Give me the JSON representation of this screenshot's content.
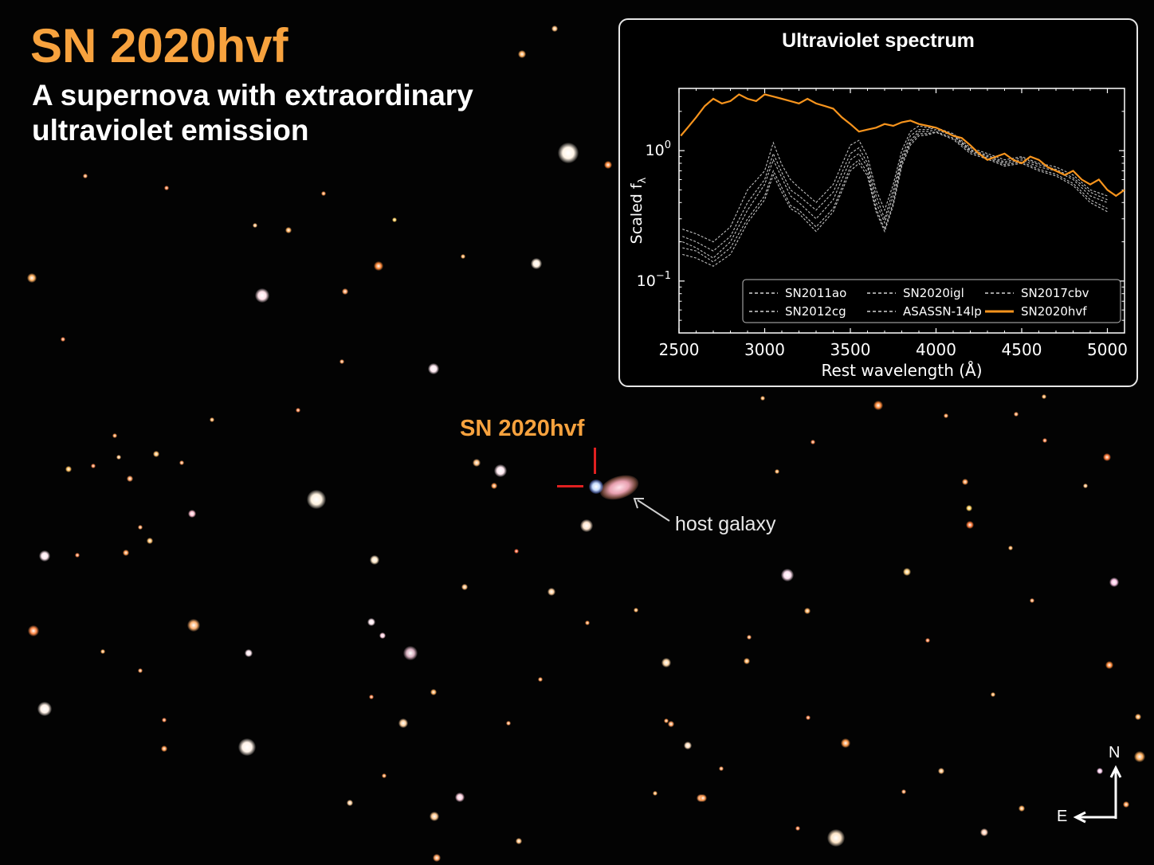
{
  "title": "SN 2020hvf",
  "subtitle": "A supernova with extraordinary ultraviolet emission",
  "annotations": {
    "sn_label": "SN 2020hvf",
    "host_label": "host galaxy"
  },
  "compass": {
    "north": "N",
    "east": "E"
  },
  "colors": {
    "accent": "#f7a23e",
    "marker": "#e02020",
    "comparison": "#d8d8d8",
    "sn2020hvf": "#f7941d"
  },
  "chart_data": {
    "type": "line",
    "title": "Ultraviolet spectrum",
    "xlabel": "Rest wavelength (Å)",
    "ylabel": "Scaled f",
    "ylabel_subscript": "λ",
    "xlim": [
      2500,
      5100
    ],
    "ylim": [
      0.04,
      3.0
    ],
    "yscale": "log",
    "xticks": [
      "2500",
      "3000",
      "3500",
      "4000",
      "4500",
      "5000"
    ],
    "yticks": [
      {
        "value": 1.0,
        "base": "10",
        "exp": "0"
      },
      {
        "value": 0.1,
        "base": "10",
        "exp": "−1"
      }
    ],
    "legend": "bottom-right",
    "series": [
      {
        "name": "SN2011ao",
        "style": "dashed",
        "color": "#ffffff",
        "x": [
          2520,
          2600,
          2700,
          2800,
          2900,
          3000,
          3050,
          3100,
          3150,
          3200,
          3300,
          3400,
          3500,
          3550,
          3600,
          3650,
          3700,
          3750,
          3800,
          3850,
          3900,
          3950,
          4000,
          4100,
          4200,
          4300,
          4400,
          4500,
          4600,
          4700,
          4800,
          4900,
          5000
        ],
        "y": [
          0.25,
          0.23,
          0.2,
          0.26,
          0.5,
          0.7,
          1.15,
          0.78,
          0.6,
          0.52,
          0.4,
          0.55,
          1.1,
          1.2,
          0.9,
          0.5,
          0.35,
          0.55,
          1.0,
          1.4,
          1.55,
          1.5,
          1.5,
          1.35,
          1.05,
          0.95,
          0.85,
          0.9,
          0.8,
          0.75,
          0.65,
          0.5,
          0.45
        ]
      },
      {
        "name": "SN2012cg",
        "style": "dashed",
        "color": "#ffffff",
        "x": [
          2520,
          2600,
          2700,
          2800,
          2900,
          3000,
          3050,
          3100,
          3150,
          3200,
          3300,
          3400,
          3500,
          3550,
          3600,
          3650,
          3700,
          3750,
          3800,
          3850,
          3900,
          3950,
          4000,
          4100,
          4200,
          4300,
          4400,
          4500,
          4600,
          4700,
          4800,
          4900,
          5000
        ],
        "y": [
          0.2,
          0.18,
          0.15,
          0.2,
          0.35,
          0.55,
          0.85,
          0.62,
          0.45,
          0.4,
          0.3,
          0.42,
          0.85,
          0.95,
          0.75,
          0.4,
          0.28,
          0.45,
          0.85,
          1.2,
          1.4,
          1.4,
          1.45,
          1.3,
          1.0,
          0.9,
          0.8,
          0.85,
          0.75,
          0.7,
          0.6,
          0.45,
          0.4
        ]
      },
      {
        "name": "SN2020igl",
        "style": "dashed",
        "color": "#ffffff",
        "x": [
          2520,
          2600,
          2700,
          2800,
          2900,
          3000,
          3050,
          3100,
          3150,
          3200,
          3300,
          3400,
          3500,
          3550,
          3600,
          3650,
          3700,
          3750,
          3800,
          3850,
          3900,
          3950,
          4000,
          4100,
          4200,
          4300,
          4400,
          4500,
          4600,
          4700,
          4800,
          4900,
          5000
        ],
        "y": [
          0.22,
          0.2,
          0.17,
          0.22,
          0.4,
          0.6,
          0.95,
          0.68,
          0.5,
          0.45,
          0.35,
          0.48,
          0.95,
          1.05,
          0.8,
          0.45,
          0.3,
          0.5,
          0.9,
          1.3,
          1.45,
          1.45,
          1.5,
          1.32,
          1.02,
          0.92,
          0.82,
          0.88,
          0.78,
          0.72,
          0.62,
          0.48,
          0.42
        ]
      },
      {
        "name": "ASASSN-14lp",
        "style": "dashed",
        "color": "#ffffff",
        "x": [
          2520,
          2600,
          2700,
          2800,
          2900,
          3000,
          3050,
          3100,
          3150,
          3200,
          3300,
          3400,
          3500,
          3550,
          3600,
          3650,
          3700,
          3750,
          3800,
          3850,
          3900,
          3950,
          4000,
          4100,
          4200,
          4300,
          4400,
          4500,
          4600,
          4700,
          4800,
          4900,
          5000
        ],
        "y": [
          0.18,
          0.17,
          0.14,
          0.18,
          0.3,
          0.45,
          0.7,
          0.52,
          0.38,
          0.35,
          0.26,
          0.36,
          0.75,
          0.85,
          0.68,
          0.36,
          0.25,
          0.4,
          0.8,
          1.15,
          1.35,
          1.35,
          1.4,
          1.25,
          0.98,
          0.88,
          0.78,
          0.82,
          0.72,
          0.66,
          0.56,
          0.42,
          0.36
        ]
      },
      {
        "name": "SN2017cbv",
        "style": "dashed",
        "color": "#ffffff",
        "x": [
          2520,
          2600,
          2700,
          2800,
          2900,
          3000,
          3050,
          3100,
          3150,
          3200,
          3300,
          3400,
          3500,
          3550,
          3600,
          3650,
          3700,
          3750,
          3800,
          3850,
          3900,
          3950,
          4000,
          4100,
          4200,
          4300,
          4400,
          4500,
          4600,
          4700,
          4800,
          4900,
          5000
        ],
        "y": [
          0.16,
          0.15,
          0.13,
          0.16,
          0.28,
          0.42,
          0.65,
          0.48,
          0.36,
          0.33,
          0.24,
          0.34,
          0.7,
          0.8,
          0.64,
          0.34,
          0.24,
          0.38,
          0.76,
          1.1,
          1.3,
          1.32,
          1.38,
          1.22,
          0.95,
          0.86,
          0.76,
          0.8,
          0.7,
          0.64,
          0.54,
          0.4,
          0.34
        ]
      },
      {
        "name": "SN2020hvf",
        "style": "solid",
        "color": "#f7941d",
        "x": [
          2510,
          2550,
          2600,
          2650,
          2700,
          2750,
          2800,
          2850,
          2900,
          2950,
          3000,
          3050,
          3100,
          3150,
          3200,
          3250,
          3300,
          3350,
          3400,
          3450,
          3500,
          3550,
          3600,
          3650,
          3700,
          3750,
          3800,
          3850,
          3900,
          3950,
          4000,
          4050,
          4100,
          4150,
          4200,
          4250,
          4300,
          4350,
          4400,
          4450,
          4500,
          4550,
          4600,
          4650,
          4700,
          4750,
          4800,
          4850,
          4900,
          4950,
          5000,
          5050,
          5100
        ],
        "y": [
          1.3,
          1.5,
          1.8,
          2.2,
          2.5,
          2.3,
          2.4,
          2.7,
          2.5,
          2.4,
          2.7,
          2.6,
          2.5,
          2.4,
          2.3,
          2.5,
          2.3,
          2.2,
          2.1,
          1.8,
          1.6,
          1.4,
          1.45,
          1.5,
          1.6,
          1.55,
          1.65,
          1.7,
          1.6,
          1.55,
          1.5,
          1.4,
          1.3,
          1.25,
          1.1,
          0.95,
          0.85,
          0.9,
          0.95,
          0.85,
          0.8,
          0.9,
          0.85,
          0.75,
          0.7,
          0.65,
          0.7,
          0.6,
          0.55,
          0.6,
          0.5,
          0.45,
          0.5
        ]
      }
    ]
  }
}
